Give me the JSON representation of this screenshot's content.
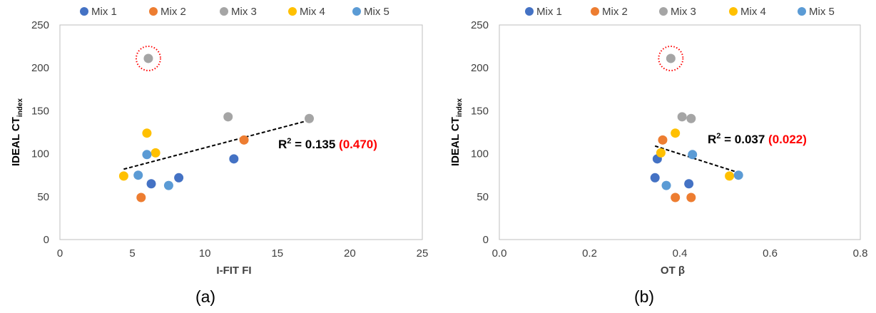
{
  "chart_data": [
    {
      "type": "scatter",
      "panel_label": "(a)",
      "xlabel": "I-FIT FI",
      "ylabel_main": "IDEAL CT",
      "ylabel_sub": "index",
      "xlim": [
        0,
        25
      ],
      "ylim": [
        0,
        250
      ],
      "x_ticks": [
        0,
        5,
        10,
        15,
        20,
        25
      ],
      "x_tick_labels": [
        "0",
        "5",
        "10",
        "15",
        "20",
        "25"
      ],
      "y_ticks": [
        0,
        50,
        100,
        150,
        200,
        250
      ],
      "y_tick_labels": [
        "0",
        "50",
        "100",
        "150",
        "200",
        "250"
      ],
      "grid": false,
      "legend_position": "top",
      "series": [
        {
          "name": "Mix 1",
          "color": "#4472C4",
          "points": [
            [
              6.3,
              65
            ],
            [
              8.2,
              72
            ],
            [
              12.0,
              94
            ]
          ]
        },
        {
          "name": "Mix 2",
          "color": "#ED7D31",
          "points": [
            [
              5.6,
              49
            ],
            [
              12.7,
              116
            ]
          ]
        },
        {
          "name": "Mix 3",
          "color": "#A5A5A5",
          "points": [
            [
              6.1,
              211
            ],
            [
              11.6,
              143
            ],
            [
              17.2,
              141
            ]
          ]
        },
        {
          "name": "Mix 4",
          "color": "#FFC000",
          "points": [
            [
              4.4,
              74
            ],
            [
              6.0,
              124
            ],
            [
              6.6,
              101
            ]
          ]
        },
        {
          "name": "Mix 5",
          "color": "#5B9BD5",
          "points": [
            [
              5.4,
              75
            ],
            [
              6.0,
              99
            ],
            [
              7.5,
              63
            ]
          ]
        }
      ],
      "trendline": {
        "from": [
          4.4,
          82
        ],
        "to": [
          17.2,
          139
        ],
        "style": "dashed"
      },
      "outlier": {
        "x": 6.1,
        "y": 211,
        "style": "dotted red circle"
      },
      "r2_annotation": {
        "prefix": "R",
        "superscript": "2",
        "text": " = 0.135 ",
        "highlight": "(0.470)",
        "highlight_color": "#FF0000"
      }
    },
    {
      "type": "scatter",
      "panel_label": "(b)",
      "xlabel": "OT β",
      "ylabel_main": "IDEAL CT",
      "ylabel_sub": "index",
      "xlim": [
        0,
        0.8
      ],
      "ylim": [
        0,
        250
      ],
      "x_ticks": [
        0,
        0.2,
        0.4,
        0.6,
        0.8
      ],
      "x_tick_labels": [
        "0.0",
        "0.2",
        "0.4",
        "0.6",
        "0.8"
      ],
      "y_ticks": [
        0,
        50,
        100,
        150,
        200,
        250
      ],
      "y_tick_labels": [
        "0",
        "50",
        "100",
        "150",
        "200",
        "250"
      ],
      "grid": false,
      "legend_position": "top",
      "series": [
        {
          "name": "Mix 1",
          "color": "#4472C4",
          "points": [
            [
              0.345,
              72
            ],
            [
              0.35,
              94
            ],
            [
              0.42,
              65
            ]
          ]
        },
        {
          "name": "Mix 2",
          "color": "#ED7D31",
          "points": [
            [
              0.362,
              116
            ],
            [
              0.39,
              49
            ],
            [
              0.425,
              49
            ]
          ]
        },
        {
          "name": "Mix 3",
          "color": "#A5A5A5",
          "points": [
            [
              0.38,
              211
            ],
            [
              0.405,
              143
            ],
            [
              0.425,
              141
            ]
          ]
        },
        {
          "name": "Mix 4",
          "color": "#FFC000",
          "points": [
            [
              0.358,
              101
            ],
            [
              0.39,
              124
            ],
            [
              0.51,
              74
            ]
          ]
        },
        {
          "name": "Mix 5",
          "color": "#5B9BD5",
          "points": [
            [
              0.37,
              63
            ],
            [
              0.428,
              99
            ],
            [
              0.53,
              75
            ]
          ]
        }
      ],
      "trendline": {
        "from": [
          0.345,
          109
        ],
        "to": [
          0.53,
          78
        ],
        "style": "dashed"
      },
      "outlier": {
        "x": 0.38,
        "y": 211,
        "style": "dotted red circle"
      },
      "r2_annotation": {
        "prefix": "R",
        "superscript": "2",
        "text": " = 0.037 ",
        "highlight": "(0.022)",
        "highlight_color": "#FF0000"
      }
    }
  ]
}
